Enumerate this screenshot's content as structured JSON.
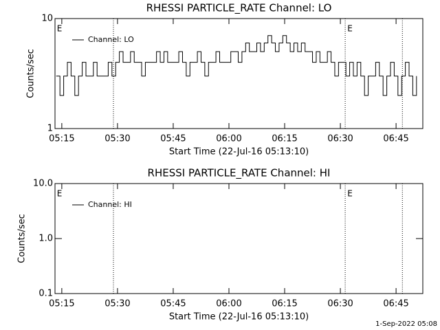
{
  "chart_data": [
    {
      "type": "line",
      "title": "RHESSI PARTICLE_RATE Channel: LO",
      "xlabel": "Start Time (22-Jul-16 05:13:10)",
      "ylabel": "Counts/sec",
      "ylog": true,
      "ylim": [
        1,
        10
      ],
      "yticks": [
        1,
        10
      ],
      "xlim": [
        313.17,
        412.2
      ],
      "xticks": [
        {
          "value": 315,
          "label": "05:15"
        },
        {
          "value": 330,
          "label": "05:30"
        },
        {
          "value": 345,
          "label": "05:45"
        },
        {
          "value": 360,
          "label": "06:00"
        },
        {
          "value": 375,
          "label": "06:15"
        },
        {
          "value": 390,
          "label": "06:30"
        },
        {
          "value": 405,
          "label": "06:45"
        }
      ],
      "vlines": [
        328.9,
        391.3,
        406.7
      ],
      "annotations": [
        {
          "text": "E",
          "x": 313.5
        },
        {
          "text": "E",
          "x": 391.7
        }
      ],
      "legend": "upper left",
      "x": [
        313.5,
        314.5,
        315.5,
        316.5,
        317.5,
        318.5,
        319.5,
        320.5,
        321.5,
        322.5,
        323.5,
        324.5,
        325.5,
        326.5,
        327.5,
        328.5,
        329.5,
        330.5,
        331.5,
        332.5,
        333.5,
        334.5,
        335.5,
        336.5,
        337.5,
        338.5,
        339.5,
        340.5,
        341.5,
        342.5,
        343.5,
        344.5,
        345.5,
        346.5,
        347.5,
        348.5,
        349.5,
        350.5,
        351.5,
        352.5,
        353.5,
        354.5,
        355.5,
        356.5,
        357.5,
        358.5,
        359.5,
        360.5,
        361.5,
        362.5,
        363.5,
        364.5,
        365.5,
        366.5,
        367.5,
        368.5,
        369.5,
        370.5,
        371.5,
        372.5,
        373.5,
        374.5,
        375.5,
        376.5,
        377.5,
        378.5,
        379.5,
        380.5,
        381.5,
        382.5,
        383.5,
        384.5,
        385.5,
        386.5,
        387.5,
        388.5,
        389.5,
        390.5,
        391.5,
        392.5,
        393.5,
        394.5,
        395.5,
        396.5,
        397.5,
        398.5,
        399.5,
        400.5,
        401.5,
        402.5,
        403.5,
        404.5,
        405.5,
        406.5,
        407.5,
        408.5,
        409.5,
        410.5
      ],
      "series": [
        {
          "name": "Channel: LO",
          "color": "#000000",
          "values": [
            3,
            2,
            3,
            4,
            3,
            2,
            3,
            4,
            3,
            3,
            4,
            3,
            3,
            3,
            4,
            3,
            4,
            5,
            4,
            4,
            5,
            4,
            4,
            3,
            4,
            4,
            4,
            5,
            4,
            5,
            4,
            4,
            4,
            5,
            4,
            3,
            4,
            4,
            5,
            4,
            3,
            4,
            4,
            5,
            4,
            4,
            4,
            5,
            5,
            4,
            5,
            6,
            5,
            5,
            6,
            5,
            6,
            7,
            6,
            5,
            6,
            7,
            6,
            5,
            6,
            5,
            6,
            5,
            5,
            4,
            5,
            4,
            4,
            5,
            4,
            3,
            4,
            4,
            3,
            4,
            3,
            4,
            3,
            2,
            3,
            3,
            4,
            3,
            2,
            3,
            4,
            3,
            2,
            3,
            4,
            3,
            2,
            3
          ]
        }
      ]
    },
    {
      "type": "line",
      "title": "RHESSI PARTICLE_RATE Channel: HI",
      "xlabel": "Start Time (22-Jul-16 05:13:10)",
      "ylabel": "Counts/sec",
      "ylog": true,
      "ylim": [
        0.1,
        10
      ],
      "yticks": [
        0.1,
        {
          "value": 1,
          "label": "1.0"
        },
        {
          "value": 10,
          "label": "10.0"
        }
      ],
      "xlim": [
        313.17,
        412.2
      ],
      "xticks": [
        {
          "value": 315,
          "label": "05:15"
        },
        {
          "value": 330,
          "label": "05:30"
        },
        {
          "value": 345,
          "label": "05:45"
        },
        {
          "value": 360,
          "label": "06:00"
        },
        {
          "value": 375,
          "label": "06:15"
        },
        {
          "value": 390,
          "label": "06:30"
        },
        {
          "value": 405,
          "label": "06:45"
        }
      ],
      "vlines": [
        328.9,
        391.3,
        406.7
      ],
      "annotations": [
        {
          "text": "E",
          "x": 313.5
        },
        {
          "text": "E",
          "x": 391.7
        }
      ],
      "legend": "upper left",
      "x": [],
      "series": [
        {
          "name": "Channel: HI",
          "color": "#000000",
          "values": []
        }
      ]
    }
  ],
  "footer": "1-Sep-2022 05:08"
}
